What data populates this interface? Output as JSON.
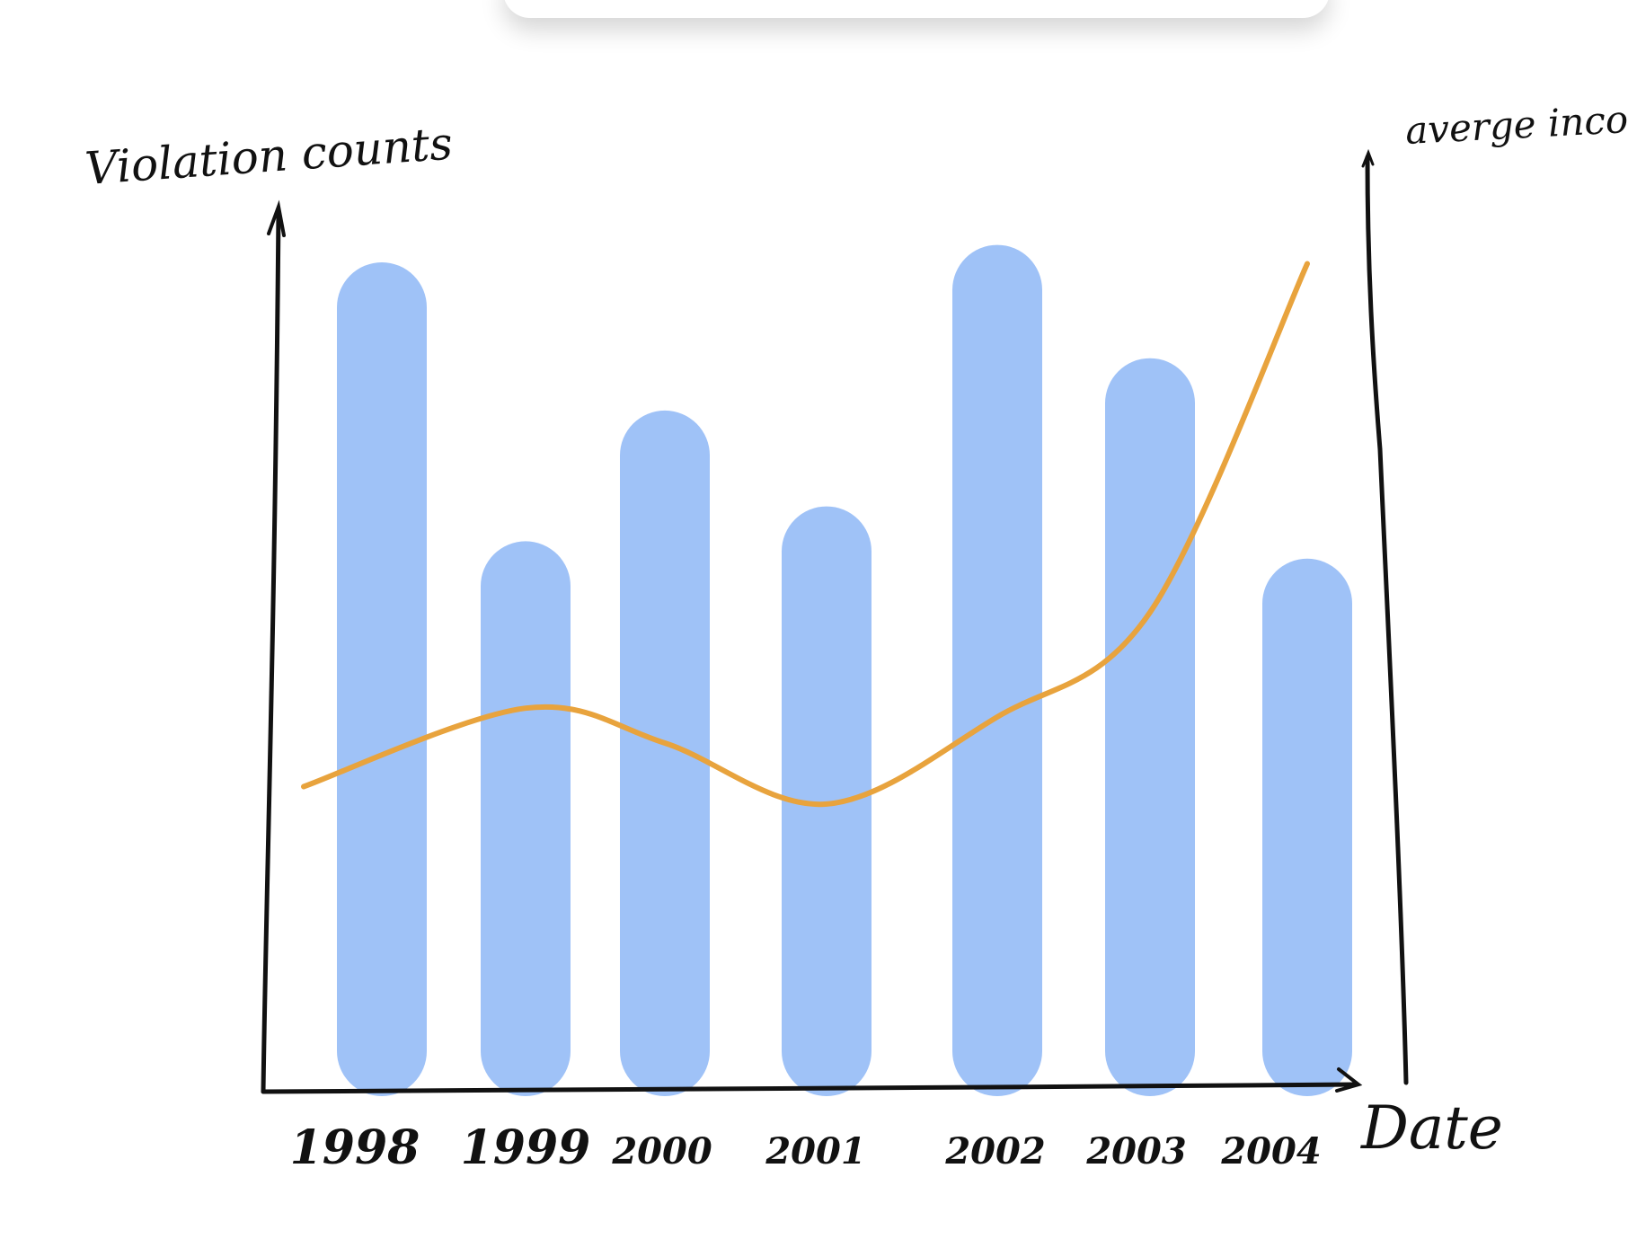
{
  "chart_data": {
    "type": "bar",
    "title": "",
    "xlabel": "Date",
    "ylabel": "Violation counts",
    "y2label": "averge income",
    "categories": [
      "1998",
      "1999",
      "2000",
      "2001",
      "2002",
      "2003",
      "2004"
    ],
    "series": [
      {
        "name": "Violation counts",
        "type": "bar",
        "axis": "left",
        "values": [
          90,
          58,
          73,
          62,
          92,
          79,
          56
        ]
      },
      {
        "name": "averge income",
        "type": "line",
        "axis": "right",
        "values": [
          35,
          44,
          40,
          33,
          43,
          55,
          95
        ]
      }
    ],
    "ylim": [
      0,
      100
    ],
    "y2lim": [
      0,
      100
    ],
    "grid": false,
    "colors": {
      "bar": "#9fc2f7",
      "line": "#e8a33d",
      "axis": "#111111"
    }
  }
}
